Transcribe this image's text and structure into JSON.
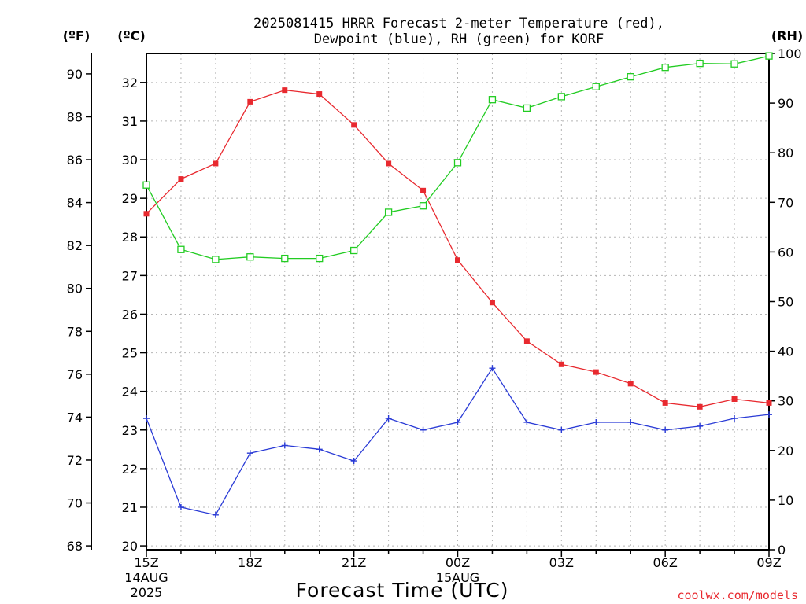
{
  "header": {
    "title_line1": "2025081415 HRRR Forecast 2-meter Temperature (red),",
    "title_line2": "Dewpoint (blue), RH (green) for KORF",
    "unit_f": "(ºF)",
    "unit_c": "(ºC)",
    "unit_rh": "(RH)"
  },
  "footer": {
    "xlabel": "Forecast Time (UTC)",
    "credit": "coolwx.com/models"
  },
  "chart_data": {
    "type": "line",
    "title": "2025081415 HRRR Forecast 2-meter Temperature (red), Dewpoint (blue), RH (green) for KORF",
    "xlabel": "Forecast Time (UTC)",
    "x": [
      "15Z",
      "16Z",
      "17Z",
      "18Z",
      "19Z",
      "20Z",
      "21Z",
      "22Z",
      "23Z",
      "00Z",
      "01Z",
      "02Z",
      "03Z",
      "04Z",
      "05Z",
      "06Z",
      "07Z",
      "08Z",
      "09Z"
    ],
    "x_tick_labels": [
      {
        "index": 0,
        "lines": [
          "15Z",
          "14AUG",
          "2025"
        ]
      },
      {
        "index": 3,
        "lines": [
          "18Z"
        ]
      },
      {
        "index": 6,
        "lines": [
          "21Z"
        ]
      },
      {
        "index": 9,
        "lines": [
          "00Z",
          "15AUG"
        ]
      },
      {
        "index": 12,
        "lines": [
          "03Z"
        ]
      },
      {
        "index": 15,
        "lines": [
          "06Z"
        ]
      },
      {
        "index": 18,
        "lines": [
          "09Z"
        ]
      }
    ],
    "y_f_ticks": [
      "68",
      "70",
      "72",
      "74",
      "76",
      "78",
      "80",
      "82",
      "84",
      "86",
      "88",
      "90"
    ],
    "y_c_ticks": [
      "20",
      "21",
      "22",
      "23",
      "24",
      "25",
      "26",
      "27",
      "28",
      "29",
      "30",
      "31",
      "32"
    ],
    "y_rh_ticks": [
      "0",
      "10",
      "20",
      "30",
      "40",
      "50",
      "60",
      "70",
      "80",
      "90",
      "100"
    ],
    "ylim_c": [
      19.9,
      32.75
    ],
    "ylim_f": [
      67.82,
      90.95
    ],
    "ylim_rh": [
      0,
      100
    ],
    "grid": true,
    "series": [
      {
        "name": "Temperature",
        "axis": "c",
        "color": "#e8292f",
        "marker": "filled-square",
        "values": [
          28.6,
          29.5,
          29.9,
          31.5,
          31.8,
          31.7,
          30.9,
          29.9,
          29.2,
          27.4,
          26.3,
          25.3,
          24.7,
          24.5,
          24.2,
          23.7,
          23.6,
          23.8,
          23.7
        ]
      },
      {
        "name": "Dewpoint",
        "axis": "c",
        "color": "#2a3bd6",
        "marker": "plus",
        "values": [
          23.3,
          21.0,
          20.8,
          22.4,
          22.6,
          22.5,
          22.2,
          23.3,
          23.0,
          23.2,
          24.6,
          23.2,
          23.0,
          23.2,
          23.2,
          23.0,
          23.1,
          23.3,
          23.4
        ]
      },
      {
        "name": "RH",
        "axis": "rh",
        "color": "#22cc22",
        "marker": "open-square",
        "values": [
          73.5,
          60.5,
          58.5,
          59.0,
          58.7,
          58.7,
          60.3,
          68.0,
          69.3,
          78.0,
          90.7,
          89.0,
          91.3,
          93.3,
          95.3,
          97.2,
          98.0,
          97.9,
          99.5
        ]
      }
    ]
  }
}
